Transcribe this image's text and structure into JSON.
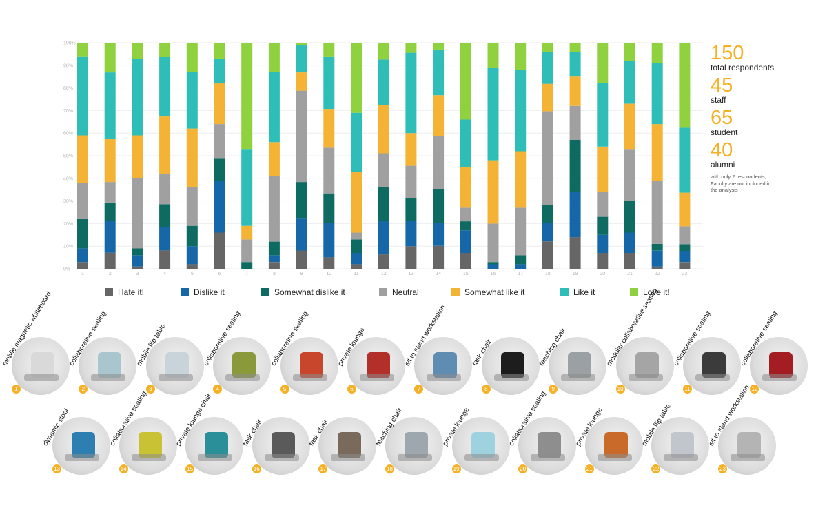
{
  "chart_data": {
    "type": "bar",
    "stacked": true,
    "normalized": true,
    "ylim": [
      0,
      100
    ],
    "yticks": [
      "0%",
      "10%",
      "20%",
      "30%",
      "40%",
      "50%",
      "60%",
      "70%",
      "80%",
      "90%",
      "100%"
    ],
    "categories": [
      "1",
      "2",
      "3",
      "4",
      "5",
      "6",
      "7",
      "8",
      "9",
      "10",
      "11",
      "12",
      "13",
      "14",
      "15",
      "16",
      "17",
      "18",
      "19",
      "20",
      "21",
      "22",
      "23"
    ],
    "legend_position": "bottom",
    "series": [
      {
        "name": "Hate it!",
        "color": "#666666",
        "values": [
          3,
          7,
          1,
          8,
          2,
          16,
          0,
          3,
          8,
          5,
          2,
          6,
          9,
          10,
          7,
          0,
          0,
          12,
          14,
          7,
          7,
          1,
          3
        ]
      },
      {
        "name": "Dislike it",
        "color": "#1567a8",
        "values": [
          6,
          14,
          5,
          10,
          8,
          23,
          0,
          3,
          14,
          15,
          5,
          14,
          10,
          10,
          10,
          2,
          2,
          8,
          20,
          8,
          9,
          7,
          5
        ]
      },
      {
        "name": "Somewhat dislike it",
        "color": "#0d6b62",
        "values": [
          13,
          8,
          3,
          10,
          9,
          10,
          3,
          6,
          16,
          13,
          6,
          14,
          9,
          15,
          4,
          1,
          4,
          8,
          23,
          8,
          14,
          3,
          3
        ]
      },
      {
        "name": "Neutral",
        "color": "#a0a0a0",
        "values": [
          16,
          9,
          31,
          13,
          17,
          15,
          10,
          29,
          40,
          20,
          3,
          14,
          13,
          23,
          6,
          17,
          21,
          41,
          15,
          11,
          23,
          28,
          8
        ]
      },
      {
        "name": "Somewhat like it",
        "color": "#f5b335",
        "values": [
          21,
          19,
          19,
          25,
          26,
          18,
          6,
          15,
          8,
          17,
          27,
          20,
          13,
          18,
          18,
          28,
          25,
          12,
          13,
          20,
          20,
          25,
          15
        ]
      },
      {
        "name": "Like it",
        "color": "#2fbdb8",
        "values": [
          35,
          29,
          34,
          26,
          25,
          11,
          34,
          31,
          12,
          23,
          26,
          19,
          32,
          20,
          21,
          41,
          36,
          14,
          11,
          28,
          19,
          27,
          29
        ]
      },
      {
        "name": "Love it!",
        "color": "#8fd13f",
        "values": [
          6,
          13,
          7,
          6,
          13,
          7,
          47,
          13,
          1,
          6,
          31,
          7,
          4,
          3,
          34,
          11,
          12,
          4,
          4,
          18,
          8,
          9,
          38
        ]
      }
    ]
  },
  "stats": [
    {
      "number": "150",
      "label": "total respondents"
    },
    {
      "number": "45",
      "label": "staff"
    },
    {
      "number": "65",
      "label": "student"
    },
    {
      "number": "40",
      "label": "alumni"
    }
  ],
  "note": "with only 2 respondents, Faculty are not included in the analysis",
  "furniture": [
    {
      "num": "1",
      "label": "mobile magnetic whiteboard",
      "accent": "#d9d9d9"
    },
    {
      "num": "2",
      "label": "collaborative seating",
      "accent": "#a9c6cf"
    },
    {
      "num": "3",
      "label": "mobile flip table",
      "accent": "#c9d3da"
    },
    {
      "num": "4",
      "label": "collaborative seating",
      "accent": "#8a9a3a"
    },
    {
      "num": "5",
      "label": "collaborative seating",
      "accent": "#c8472c"
    },
    {
      "num": "6",
      "label": "private lounge",
      "accent": "#b22f2a"
    },
    {
      "num": "7",
      "label": "sit to stand workstation",
      "accent": "#5f8db2"
    },
    {
      "num": "8",
      "label": "task chair",
      "accent": "#1d1d1d"
    },
    {
      "num": "9",
      "label": "teaching chair",
      "accent": "#9aa0a3"
    },
    {
      "num": "10",
      "label": "modular collaborative seating",
      "accent": "#a5a5a5"
    },
    {
      "num": "11",
      "label": "collaborative seating",
      "accent": "#3b3b3b"
    },
    {
      "num": "12",
      "label": "collaborative seating",
      "accent": "#a31d22"
    },
    {
      "num": "13",
      "label": "dynamic stool",
      "accent": "#2c7fb0"
    },
    {
      "num": "14",
      "label": "collaborative seating",
      "accent": "#c9c235"
    },
    {
      "num": "15",
      "label": "private lounge chair",
      "accent": "#2b8f9a"
    },
    {
      "num": "16",
      "label": "task chair",
      "accent": "#5a5a5a"
    },
    {
      "num": "17",
      "label": "task chair",
      "accent": "#7a6a5c"
    },
    {
      "num": "18",
      "label": "teaching chair",
      "accent": "#9fa7ae"
    },
    {
      "num": "19",
      "label": "private lounge",
      "accent": "#9dd2de"
    },
    {
      "num": "20",
      "label": "collaborative seating",
      "accent": "#8e8e8e"
    },
    {
      "num": "21",
      "label": "private lounge",
      "accent": "#c96a2a"
    },
    {
      "num": "22",
      "label": "mobile flip table",
      "accent": "#c0c6cc"
    },
    {
      "num": "23",
      "label": "sit to stand workstation",
      "accent": "#b4b4b4"
    }
  ]
}
